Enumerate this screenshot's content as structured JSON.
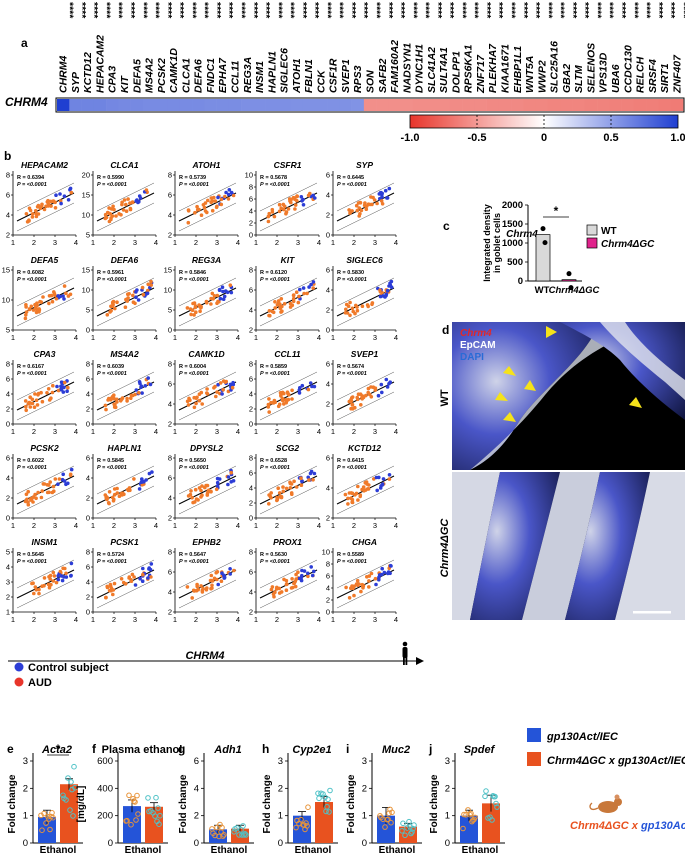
{
  "panel_labels": {
    "a": "a",
    "b": "b",
    "c": "c",
    "d": "d",
    "e": "e",
    "f": "f",
    "g": "g",
    "h": "h",
    "i": "i",
    "j": "j"
  },
  "significance": "****",
  "heatmap": {
    "row_label": "CHRM4",
    "genes": [
      "CHRM4",
      "SYP",
      "KCTD12",
      "HEPACAM2",
      "CPA3",
      "KIT",
      "DEFA5",
      "MS4A2",
      "PCSK2",
      "CAMK1D",
      "CLCA1",
      "DEFA6",
      "FNDC1",
      "EPHA7",
      "CCL11",
      "REG3A",
      "INSM1",
      "HAPLN1",
      "SIGLEC6",
      "ATOH1",
      "FBLN1",
      "CCK",
      "CSF1R",
      "SVEP1",
      "RPS3",
      "SON",
      "SAFB2",
      "FAM160A2",
      "NADSYN1",
      "DYNC1H1",
      "SLC41A2",
      "SULT4A1",
      "DOLPP1",
      "RPS6KA1",
      "ZNF717",
      "PLEKHA7",
      "KIAA1671",
      "EHBP1L1",
      "WNT5A",
      "WWP2",
      "SLC25A16",
      "GBA2",
      "SLTM",
      "SELENOS",
      "VPS13D",
      "UBA6",
      "CCDC130",
      "RELCH",
      "SRSF4",
      "SIRT1",
      "ZNF407"
    ],
    "values": [
      1.0,
      0.64,
      0.64,
      0.64,
      0.62,
      0.61,
      0.61,
      0.6,
      0.6,
      0.6,
      0.6,
      0.6,
      0.59,
      0.59,
      0.59,
      0.58,
      0.58,
      0.58,
      0.58,
      0.57,
      0.57,
      0.57,
      0.57,
      0.57,
      0.56,
      -0.55,
      -0.55,
      -0.55,
      -0.55,
      -0.56,
      -0.56,
      -0.56,
      -0.57,
      -0.57,
      -0.57,
      -0.58,
      -0.58,
      -0.58,
      -0.59,
      -0.59,
      -0.6,
      -0.6,
      -0.6,
      -0.61,
      -0.61,
      -0.62,
      -0.62,
      -0.63,
      -0.63,
      -0.64,
      -0.65
    ],
    "colorbar": {
      "ticks": [
        "-1.0",
        "-0.5",
        "0",
        "0.5",
        "1.0"
      ],
      "low_color": "#e8352b",
      "mid_color": "#ffffff",
      "high_color": "#1f3fd1"
    }
  },
  "scatter": {
    "xlabel": "CHRM4",
    "legend": [
      {
        "label": "Control subject",
        "color": "#2c3dd6"
      },
      {
        "label": "AUD",
        "color": "#e8352b"
      }
    ],
    "points_color": "#f07a2a",
    "x_ticks": [
      "1",
      "2",
      "3",
      "4"
    ],
    "panels": [
      {
        "gene": "HEPACAM2",
        "r": "R = 0.6394",
        "p": "P = <0.0001",
        "yticks": [
          "2",
          "4",
          "6",
          "8"
        ]
      },
      {
        "gene": "CLCA1",
        "r": "R = 0.5990",
        "p": "P = <0.0001",
        "yticks": [
          "5",
          "10",
          "15",
          "20"
        ]
      },
      {
        "gene": "ATOH1",
        "r": "R = 0.5739",
        "p": "P = <0.0001",
        "yticks": [
          "2",
          "4",
          "6",
          "8"
        ]
      },
      {
        "gene": "CSFR1",
        "r": "R = 0.5678",
        "p": "P = <0.0001",
        "yticks": [
          "0",
          "2",
          "4",
          "6",
          "8",
          "10"
        ]
      },
      {
        "gene": "SYP",
        "r": "R = 0.6445",
        "p": "P = <0.0001",
        "yticks": [
          "0",
          "2",
          "4",
          "6"
        ]
      },
      {
        "gene": "DEFA5",
        "r": "R = 0.6082",
        "p": "P = <0.0001",
        "yticks": [
          "5",
          "10",
          "15"
        ]
      },
      {
        "gene": "DEFA6",
        "r": "R = 0.5961",
        "p": "P = <0.0001",
        "yticks": [
          "0",
          "5",
          "10",
          "15"
        ]
      },
      {
        "gene": "REG3A",
        "r": "R = 0.5846",
        "p": "P = <0.0001",
        "yticks": [
          "0",
          "5",
          "10",
          "15"
        ]
      },
      {
        "gene": "KIT",
        "r": "R = 0.6120",
        "p": "P = <0.0001",
        "yticks": [
          "2",
          "4",
          "6",
          "8"
        ]
      },
      {
        "gene": "SIGLEC6",
        "r": "R = 0.5830",
        "p": "P = <0.0001",
        "yticks": [
          "0",
          "2",
          "4",
          "6"
        ]
      },
      {
        "gene": "CPA3",
        "r": "R = 0.6167",
        "p": "P = <0.0001",
        "yticks": [
          "0",
          "2",
          "4",
          "6",
          "8"
        ]
      },
      {
        "gene": "MS4A2",
        "r": "R = 0.6039",
        "p": "P = <0.0001",
        "yticks": [
          "0",
          "2",
          "4",
          "6",
          "8"
        ]
      },
      {
        "gene": "CAMK1D",
        "r": "R = 0.6004",
        "p": "P = <0.0001",
        "yticks": [
          "2",
          "4",
          "6",
          "8"
        ]
      },
      {
        "gene": "CCL11",
        "r": "R = 0.5859",
        "p": "P = <0.0001",
        "yticks": [
          "0",
          "2",
          "4",
          "6",
          "8"
        ]
      },
      {
        "gene": "SVEP1",
        "r": "R = 0.5674",
        "p": "P = <0.0001",
        "yticks": [
          "0",
          "2",
          "4",
          "6"
        ]
      },
      {
        "gene": "PCSK2",
        "r": "R = 0.6022",
        "p": "P = <0.0001",
        "yticks": [
          "0",
          "2",
          "4",
          "6"
        ]
      },
      {
        "gene": "HAPLN1",
        "r": "R = 0.5845",
        "p": "P = <0.0001",
        "yticks": [
          "0",
          "2",
          "4",
          "6"
        ]
      },
      {
        "gene": "DPYSL2",
        "r": "R = 0.5650",
        "p": "P = <0.0001",
        "yticks": [
          "2",
          "4",
          "6",
          "8"
        ]
      },
      {
        "gene": "SCG2",
        "r": "R = 0.6528",
        "p": "P = <0.0001",
        "yticks": [
          "0",
          "2",
          "4",
          "6",
          "8"
        ]
      },
      {
        "gene": "KCTD12",
        "r": "R = 0.6415",
        "p": "P = <0.0001",
        "yticks": [
          "2",
          "4",
          "6"
        ]
      },
      {
        "gene": "INSM1",
        "r": "R = 0.5645",
        "p": "P = <0.0001",
        "yticks": [
          "1",
          "2",
          "3",
          "4",
          "5"
        ]
      },
      {
        "gene": "PCSK1",
        "r": "R = 0.5724",
        "p": "P = <0.0001",
        "yticks": [
          "0",
          "2",
          "4",
          "6",
          "8"
        ]
      },
      {
        "gene": "EPHB2",
        "r": "R = 0.5647",
        "p": "P = <0.0001",
        "yticks": [
          "2",
          "4",
          "6",
          "8"
        ]
      },
      {
        "gene": "PROX1",
        "r": "R = 0.5630",
        "p": "P = <0.0001",
        "yticks": [
          "2",
          "4",
          "6",
          "8"
        ]
      },
      {
        "gene": "CHGA",
        "r": "R = 0.5589",
        "p": "P = <0.0001",
        "yticks": [
          "0",
          "2",
          "4",
          "6",
          "8",
          "10"
        ]
      }
    ]
  },
  "panel_c": {
    "title": "Chrm4",
    "ylabel": "Integrated density in goblet cells",
    "yticks": [
      "0",
      "500",
      "1000",
      "1500",
      "2000"
    ],
    "categories": [
      "WT",
      "Chrm4ΔGC"
    ],
    "values": [
      1220,
      35
    ],
    "sig": "*",
    "legend": [
      {
        "label": "WT",
        "color": "#d9d9d9"
      },
      {
        "label": "Chrm4ΔGC",
        "color": "#e0238c"
      }
    ]
  },
  "panel_d": {
    "labels": {
      "chrm4": "Chrm4",
      "epcam": "EpCAM",
      "dapi": "DAPI",
      "wt": "WT",
      "ko": "Chrm4ΔGC"
    },
    "colors": {
      "chrm4": "#e0282a",
      "epcam": "#ffffff",
      "dapi": "#2a6bd6"
    }
  },
  "bottom": {
    "xlabel": "Ethanol",
    "legend": [
      {
        "label": "gp130Act/IEC",
        "color": "#2454d8"
      },
      {
        "label": "Chrm4ΔGC x gp130Act/IEC",
        "color": "#e8521f"
      }
    ],
    "mouse_label_a": "Chrm4ΔGC",
    "mouse_label_x": " x ",
    "mouse_label_b": "gp130Act/IEC",
    "panels": [
      {
        "title": "Acta2",
        "italic": true,
        "ylabel": "Fold change",
        "yticks": [
          "0",
          "1",
          "2",
          "3"
        ],
        "ymax": 3,
        "values": [
          0.95,
          2.15
        ],
        "errors": [
          0.25,
          0.2
        ],
        "sig": "*"
      },
      {
        "title": "Plasma ethanol",
        "italic": false,
        "ylabel": "[mg/dL]",
        "yticks": [
          "0",
          "200",
          "400",
          "600"
        ],
        "ymax": 600,
        "values": [
          270,
          265
        ],
        "errors": [
          45,
          30
        ],
        "sig": ""
      },
      {
        "title": "Adh1",
        "italic": true,
        "ylabel": "Fold change",
        "yticks": [
          "0",
          "2",
          "4",
          "6"
        ],
        "ymax": 6,
        "values": [
          1.0,
          1.05
        ],
        "errors": [
          0.3,
          0.25
        ],
        "sig": ""
      },
      {
        "title": "Cyp2e1",
        "italic": true,
        "ylabel": "Fold change",
        "yticks": [
          "0",
          "1",
          "2",
          "3"
        ],
        "ymax": 3,
        "values": [
          1.0,
          1.5
        ],
        "errors": [
          0.15,
          0.2
        ],
        "sig": ""
      },
      {
        "title": "Muc2",
        "italic": true,
        "ylabel": "Fold change",
        "yticks": [
          "0",
          "1",
          "2",
          "3"
        ],
        "ymax": 3,
        "values": [
          1.0,
          0.6
        ],
        "errors": [
          0.3,
          0.12
        ],
        "sig": ""
      },
      {
        "title": "Spdef",
        "italic": true,
        "ylabel": "Fold change",
        "yticks": [
          "0",
          "1",
          "2",
          "3"
        ],
        "ymax": 3,
        "values": [
          1.0,
          1.45
        ],
        "errors": [
          0.2,
          0.3
        ],
        "sig": ""
      }
    ]
  }
}
